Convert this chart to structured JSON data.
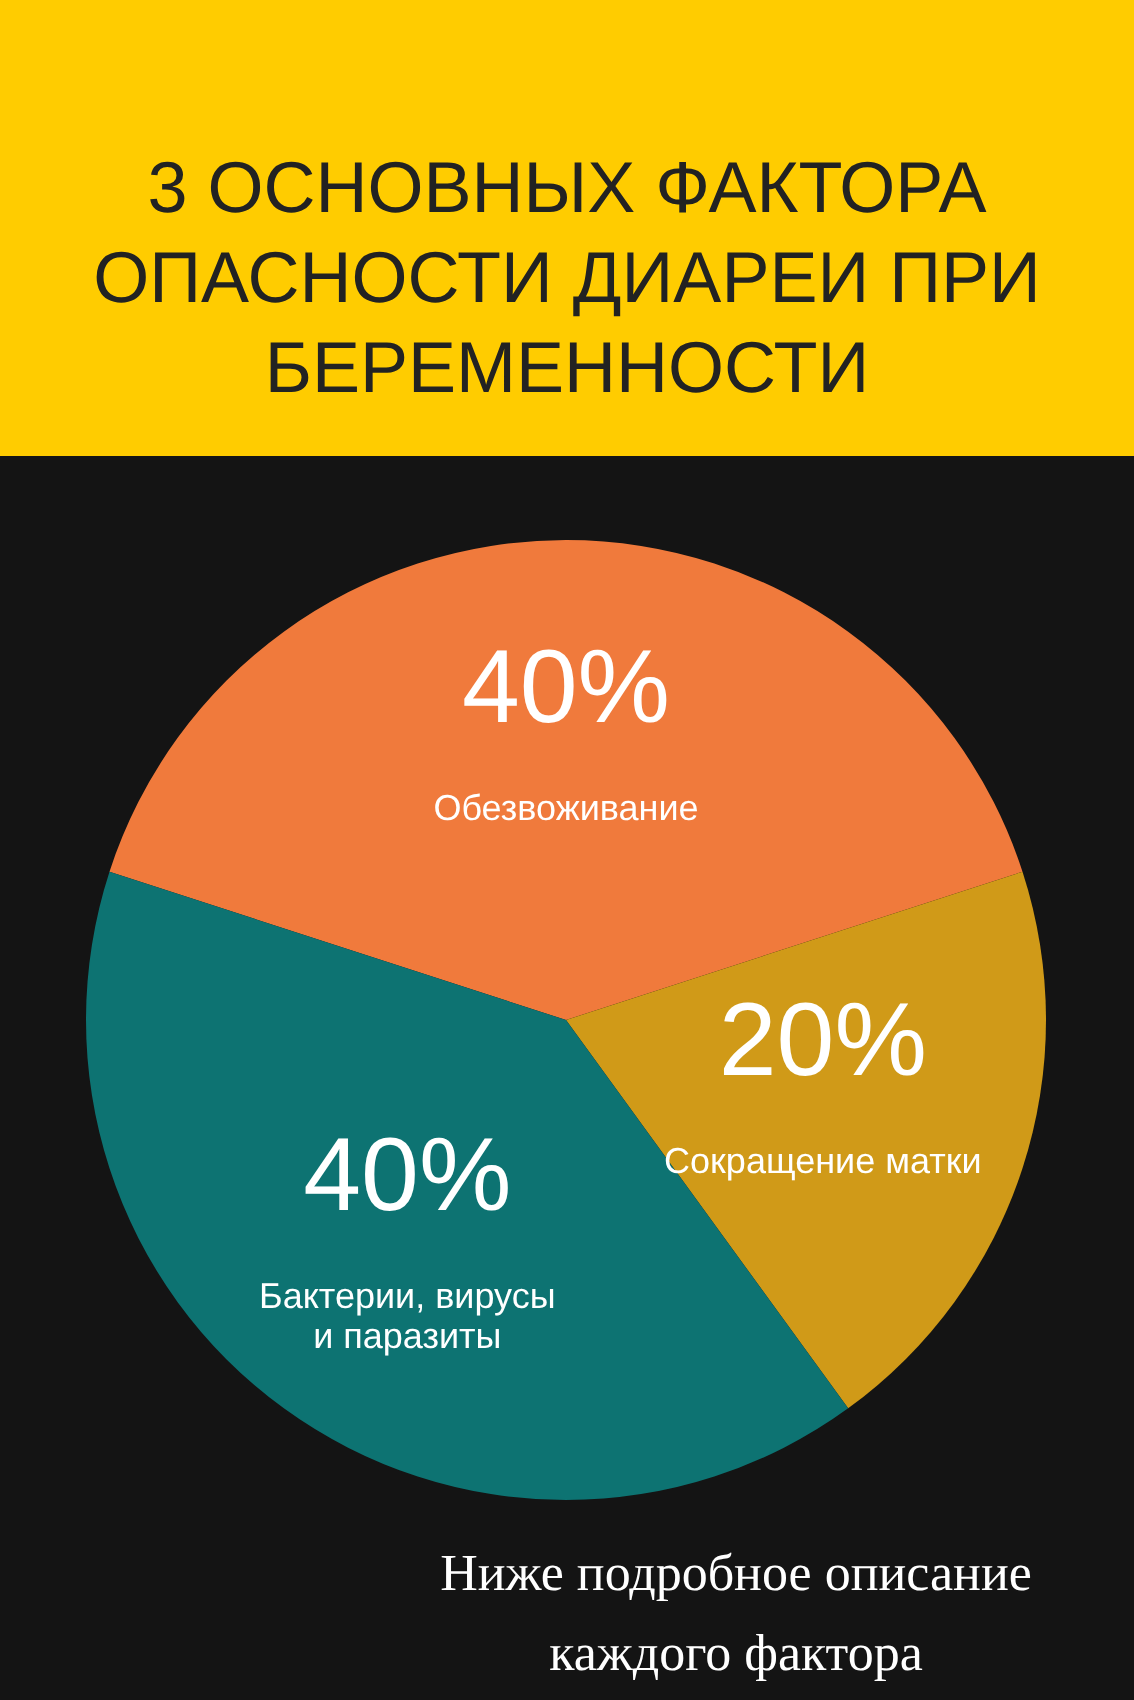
{
  "chart_data": {
    "type": "pie",
    "title": "3 ОСНОВНЫХ ФАКТОРА ОПАСНОСТИ ДИАРЕИ ПРИ БЕРЕМЕННОСТИ",
    "categories": [
      "Обезвоживание",
      "Сокращение матки",
      "Бактерии, вирусы и паразиты"
    ],
    "values": [
      40,
      20,
      40
    ],
    "colors": [
      "#f07a3c",
      "#d09a18",
      "#0d7372"
    ],
    "value_labels": [
      "40%",
      "20%",
      "40%"
    ],
    "annotations": [
      "Ниже подробное описание каждого фактора"
    ]
  }
}
